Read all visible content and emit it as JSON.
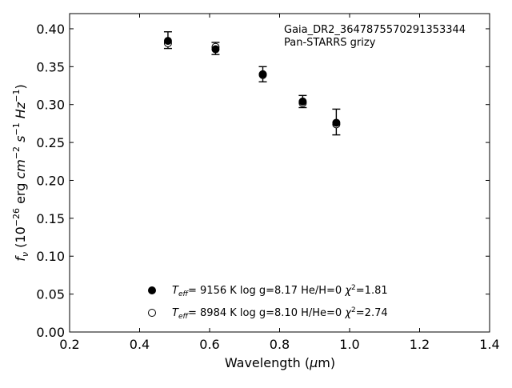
{
  "chart_data": {
    "type": "scatter",
    "annotation": [
      "Gaia_DR2_3647875570291353344",
      "Pan-STARRS grizy"
    ],
    "xlabel": "Wavelength (μm)",
    "ylabel": "fν (10⁻²⁶ erg cm⁻² s⁻¹ Hz⁻¹)",
    "xlim": [
      0.2,
      1.4
    ],
    "ylim": [
      0.0,
      0.42
    ],
    "xticks": [
      "0.2",
      "0.4",
      "0.6",
      "0.8",
      "1.0",
      "1.2",
      "1.4"
    ],
    "yticks": [
      "0.00",
      "0.05",
      "0.10",
      "0.15",
      "0.20",
      "0.25",
      "0.30",
      "0.35",
      "0.40"
    ],
    "grid": false,
    "legend_position": "lower-center",
    "observed": {
      "x": [
        0.481,
        0.617,
        0.752,
        0.866,
        0.962
      ],
      "y": [
        0.385,
        0.374,
        0.34,
        0.304,
        0.277
      ],
      "err": [
        0.011,
        0.008,
        0.01,
        0.008,
        0.017
      ]
    },
    "series": [
      {
        "marker": "filled-circle",
        "teff": "9156 K",
        "logg": "log g=8.17",
        "comp": "He/H=0",
        "chi2": "=1.81",
        "values": [
          0.384,
          0.373,
          0.34,
          0.304,
          0.276
        ]
      },
      {
        "marker": "open-circle",
        "teff": "8984 K",
        "logg": "log g=8.10",
        "comp": "H/He=0",
        "chi2": "=2.74",
        "values": [
          0.381,
          0.376,
          0.339,
          0.302,
          0.274
        ]
      }
    ]
  }
}
